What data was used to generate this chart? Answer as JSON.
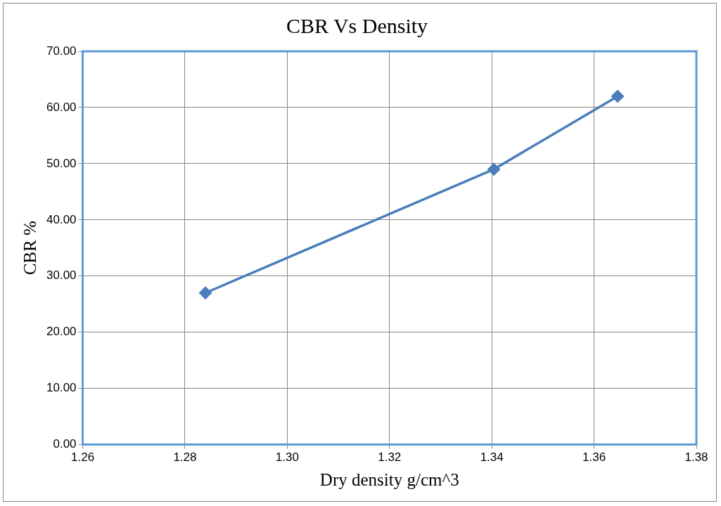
{
  "chart_data": {
    "type": "line",
    "title": "CBR Vs Density",
    "xlabel": "Dry density g/cm^3",
    "ylabel": "CBR %",
    "x": [
      1.284,
      1.3404,
      1.3646
    ],
    "series": [
      {
        "color": "#4a7ebb",
        "values": [
          27,
          49,
          62
        ]
      }
    ],
    "xlim": [
      1.26,
      1.38
    ],
    "xticks": [
      {
        "value": 1.26,
        "label": "1.26"
      },
      {
        "value": 1.28,
        "label": "1.28"
      },
      {
        "value": 1.3,
        "label": "1.30"
      },
      {
        "value": 1.32,
        "label": "1.32"
      },
      {
        "value": 1.34,
        "label": "1.34"
      },
      {
        "value": 1.36,
        "label": "1.36"
      },
      {
        "value": 1.38,
        "label": "1.38"
      }
    ],
    "ylim": [
      0,
      70
    ],
    "yticks": [
      {
        "value": 0,
        "label": "0.00"
      },
      {
        "value": 10,
        "label": "10.00"
      },
      {
        "value": 20,
        "label": "20.00"
      },
      {
        "value": 30,
        "label": "30.00"
      },
      {
        "value": 40,
        "label": "40.00"
      },
      {
        "value": 50,
        "label": "50.00"
      },
      {
        "value": 60,
        "label": "60.00"
      },
      {
        "value": 70,
        "label": "70.00"
      }
    ],
    "grid": true,
    "legend": false,
    "marker": "diamond",
    "line_style": "solid"
  }
}
